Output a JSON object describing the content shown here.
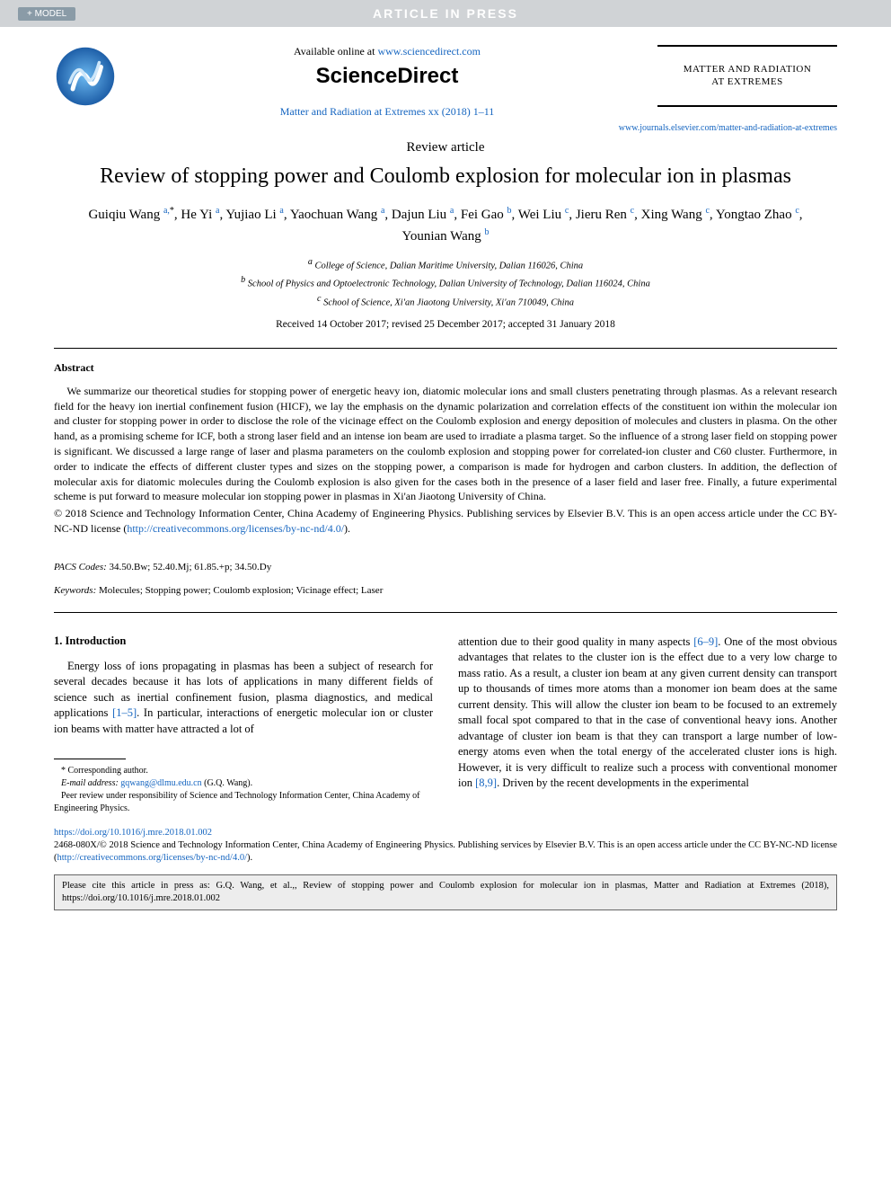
{
  "banner": {
    "model": "+ MODEL",
    "status": "ARTICLE IN PRESS"
  },
  "header": {
    "available_prefix": "Available online at ",
    "available_url": "www.sciencedirect.com",
    "publisher": "ScienceDirect",
    "citation": "Matter and Radiation at Extremes xx (2018) 1–11",
    "journal_name_l1": "MATTER AND RADIATION",
    "journal_name_l2": "AT EXTREMES",
    "journal_link": "www.journals.elsevier.com/matter-and-radiation-at-extremes"
  },
  "article": {
    "type": "Review article",
    "title": "Review of stopping power and Coulomb explosion for molecular ion in plasmas",
    "authors_html": "Guiqiu Wang <span class='sup link'>a,</span><span class='sup'>*</span>, He Yi <span class='sup link'>a</span>, Yujiao Li <span class='sup link'>a</span>, Yaochuan Wang <span class='sup link'>a</span>, Dajun Liu <span class='sup link'>a</span>, Fei Gao <span class='sup link'>b</span>, Wei Liu <span class='sup link'>c</span>, Jieru Ren <span class='sup link'>c</span>, Xing Wang <span class='sup link'>c</span>, Yongtao Zhao <span class='sup link'>c</span>, Younian Wang <span class='sup link'>b</span>",
    "affiliations": [
      "a College of Science, Dalian Maritime University, Dalian 116026, China",
      "b School of Physics and Optoelectronic Technology, Dalian University of Technology, Dalian 116024, China",
      "c School of Science, Xi'an Jiaotong University, Xi'an 710049, China"
    ],
    "dates": "Received 14 October 2017; revised 25 December 2017; accepted 31 January 2018"
  },
  "abstract": {
    "heading": "Abstract",
    "text": "We summarize our theoretical studies for stopping power of energetic heavy ion, diatomic molecular ions and small clusters penetrating through plasmas. As a relevant research field for the heavy ion inertial confinement fusion (HICF), we lay the emphasis on the dynamic polarization and correlation effects of the constituent ion within the molecular ion and cluster for stopping power in order to disclose the role of the vicinage effect on the Coulomb explosion and energy deposition of molecules and clusters in plasma. On the other hand, as a promising scheme for ICF, both a strong laser field and an intense ion beam are used to irradiate a plasma target. So the influence of a strong laser field on stopping power is significant. We discussed a large range of laser and plasma parameters on the coulomb explosion and stopping power for correlated-ion cluster and C60 cluster. Furthermore, in order to indicate the effects of different cluster types and sizes on the stopping power, a comparison is made for hydrogen and carbon clusters. In addition, the deflection of molecular axis for diatomic molecules during the Coulomb explosion is also given for the cases both in the presence of a laser field and laser free. Finally, a future experimental scheme is put forward to measure molecular ion stopping power in plasmas in Xi'an Jiaotong University of China.",
    "copyright_prefix": "© 2018 Science and Technology Information Center, China Academy of Engineering Physics. Publishing services by Elsevier B.V. This is an open access article under the CC BY-NC-ND license (",
    "copyright_url": "http://creativecommons.org/licenses/by-nc-nd/4.0/",
    "copyright_suffix": ")."
  },
  "pacs": {
    "label": "PACS Codes:",
    "value": " 34.50.Bw; 52.40.Mj; 61.85.+p; 34.50.Dy"
  },
  "keywords": {
    "label": "Keywords:",
    "value": " Molecules; Stopping power; Coulomb explosion; Vicinage effect; Laser"
  },
  "body": {
    "section1_heading": "1. Introduction",
    "col1_p1_prefix": "Energy loss of ions propagating in plasmas has been a subject of research for several decades because it has lots of applications in many different fields of science such as inertial confinement fusion, plasma diagnostics, and medical applications ",
    "col1_ref1": "[1–5]",
    "col1_p1_suffix": ". In particular, interactions of energetic molecular ion or cluster ion beams with matter have attracted a lot of",
    "col2_p1_prefix": "attention due to their good quality in many aspects ",
    "col2_ref1": "[6–9]",
    "col2_p1_mid": ". One of the most obvious advantages that relates to the cluster ion is the effect due to a very low charge to mass ratio. As a result, a cluster ion beam at any given current density can transport up to thousands of times more atoms than a monomer ion beam does at the same current density. This will allow the cluster ion beam to be focused to an extremely small focal spot compared to that in the case of conventional heavy ions. Another advantage of cluster ion beam is that they can transport a large number of low-energy atoms even when the total energy of the accelerated cluster ions is high. However, it is very difficult to realize such a process with conventional monomer ion ",
    "col2_ref2": "[8,9]",
    "col2_p1_suffix": ". Driven by the recent developments in the experimental"
  },
  "footnotes": {
    "corr": "* Corresponding author.",
    "email_label": "E-mail address:",
    "email": " gqwang@dlmu.edu.cn",
    "email_suffix": " (G.Q. Wang).",
    "peer_review": "Peer review under responsibility of Science and Technology Information Center, China Academy of Engineering Physics."
  },
  "footer": {
    "doi": "https://doi.org/10.1016/j.mre.2018.01.002",
    "license_prefix": "2468-080X/© 2018 Science and Technology Information Center, China Academy of Engineering Physics. Publishing services by Elsevier B.V. This is an open access article under the CC BY-NC-ND license (",
    "license_url": "http://creativecommons.org/licenses/by-nc-nd/4.0/",
    "license_suffix": ").",
    "cite": "Please cite this article in press as: G.Q. Wang, et al.,, Review of stopping power and Coulomb explosion for molecular ion in plasmas, Matter and Radiation at Extremes (2018), https://doi.org/10.1016/j.mre.2018.01.002"
  },
  "colors": {
    "link": "#1565c0",
    "banner_bg": "#d0d3d6",
    "badge_bg": "#8a9ba7",
    "cite_bg": "#ededed"
  }
}
